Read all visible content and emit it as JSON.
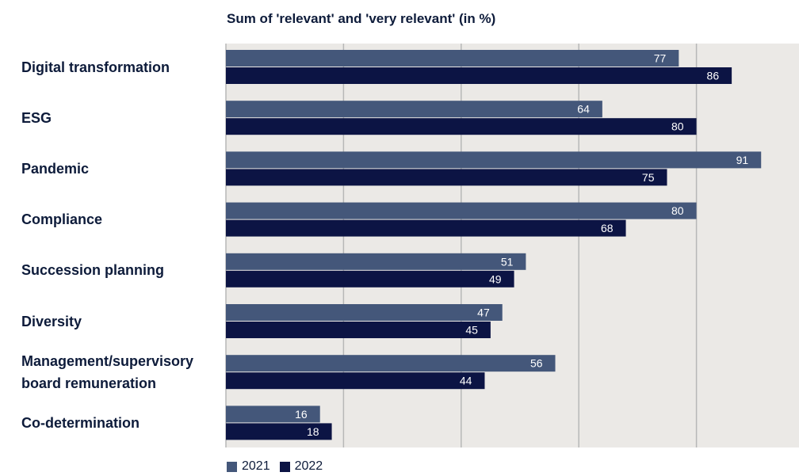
{
  "chart_data": {
    "type": "bar",
    "orientation": "horizontal",
    "title": "Sum of 'relevant' and 'very relevant' (in %)",
    "categories": [
      [
        "Digital transformation"
      ],
      [
        "ESG"
      ],
      [
        "Pandemic"
      ],
      [
        "Compliance"
      ],
      [
        "Succession planning"
      ],
      [
        "Diversity"
      ],
      [
        "Management/supervisory",
        "board remuneration"
      ],
      [
        "Co-determination"
      ]
    ],
    "series": [
      {
        "name": "2021",
        "color": "#44577a",
        "values": [
          77,
          64,
          91,
          80,
          51,
          47,
          56,
          16
        ]
      },
      {
        "name": "2022",
        "color": "#0c1444",
        "values": [
          86,
          80,
          75,
          68,
          49,
          45,
          44,
          18
        ]
      }
    ],
    "xlim": [
      0,
      100
    ],
    "gridlines": [
      20,
      40,
      60,
      80
    ],
    "grid": true,
    "legend": "bottom-left",
    "plot_background": "#ebe9e6",
    "gridline_color": "#b7b7b7",
    "label_color": "#ffffff"
  }
}
